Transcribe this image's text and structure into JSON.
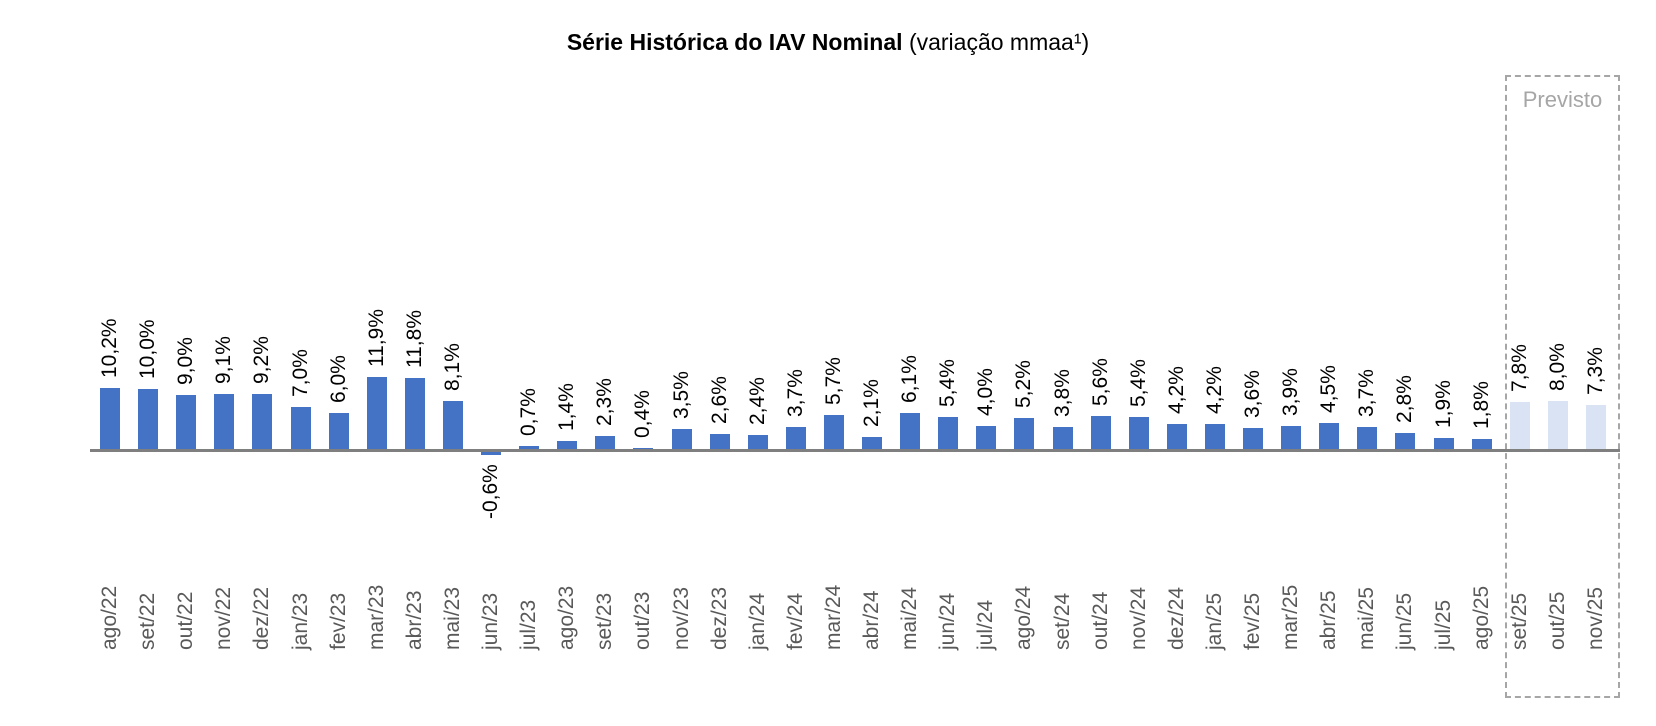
{
  "title": {
    "bold": "Série Histórica do IAV Nominal",
    "normal": "(variação mmaa¹)"
  },
  "forecast": {
    "label": "Previsto"
  },
  "colors": {
    "bar": "#4472C4",
    "forecast_bar": "#DAE3F3",
    "axis": "#7F7F7F",
    "tick_label": "#595959",
    "value_label": "#000000",
    "forecast_box": "#A6A6A6"
  },
  "chart_data": {
    "type": "bar",
    "title": "Série Histórica do IAV Nominal (variação mmaa¹)",
    "xlabel": "",
    "ylabel": "",
    "grid": false,
    "legend_position": "none",
    "value_suffix": "%",
    "decimal_separator": ",",
    "baseline": 0,
    "ylim": [
      -1,
      13
    ],
    "forecast_from_index": 37,
    "categories": [
      "ago/22",
      "set/22",
      "out/22",
      "nov/22",
      "dez/22",
      "jan/23",
      "fev/23",
      "mar/23",
      "abr/23",
      "mai/23",
      "jun/23",
      "jul/23",
      "ago/23",
      "set/23",
      "out/23",
      "nov/23",
      "dez/23",
      "jan/24",
      "fev/24",
      "mar/24",
      "abr/24",
      "mai/24",
      "jun/24",
      "jul/24",
      "ago/24",
      "set/24",
      "out/24",
      "nov/24",
      "dez/24",
      "jan/25",
      "fev/25",
      "mar/25",
      "abr/25",
      "mai/25",
      "jun/25",
      "jul/25",
      "ago/25",
      "set/25",
      "out/25",
      "nov/25"
    ],
    "values": [
      10.2,
      10.0,
      9.0,
      9.1,
      9.2,
      7.0,
      6.0,
      11.9,
      11.8,
      8.1,
      -0.6,
      0.7,
      1.4,
      2.3,
      0.4,
      3.5,
      2.6,
      2.4,
      3.7,
      5.7,
      2.1,
      6.1,
      5.4,
      4.0,
      5.2,
      3.8,
      5.6,
      5.4,
      4.2,
      4.2,
      3.6,
      3.9,
      4.5,
      3.7,
      2.8,
      1.9,
      1.8,
      7.8,
      8.0,
      7.3
    ],
    "value_labels": [
      "10,2%",
      "10,0%",
      "9,0%",
      "9,1%",
      "9,2%",
      "7,0%",
      "6,0%",
      "11,9%",
      "11,8%",
      "8,1%",
      "-0,6%",
      "0,7%",
      "1,4%",
      "2,3%",
      "0,4%",
      "3,5%",
      "2,6%",
      "2,4%",
      "3,7%",
      "5,7%",
      "2,1%",
      "6,1%",
      "5,4%",
      "4,0%",
      "5,2%",
      "3,8%",
      "5,6%",
      "5,4%",
      "4,2%",
      "4,2%",
      "3,6%",
      "3,9%",
      "4,5%",
      "3,7%",
      "2,8%",
      "1,9%",
      "1,8%",
      "7,8%",
      "8,0%",
      "7,3%"
    ]
  }
}
